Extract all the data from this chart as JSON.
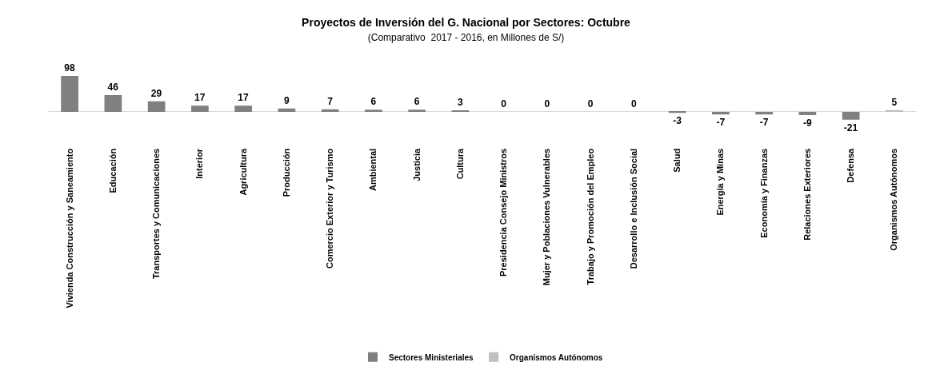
{
  "chart_data": {
    "type": "bar",
    "title": "Proyectos de Inversión del G. Nacional por Sectores: Octubre",
    "subtitle": "(Comparativo  2017 - 2016, en Millones de S/)",
    "categories": [
      "Vivienda Construcción y Saneamiento",
      "Educación",
      "Transportes y Comunicaciones",
      "Interior",
      "Agricultura",
      "Producción",
      "Comercio Exterior y Turismo",
      "Ambiental",
      "Justicia",
      "Cultura",
      "Presidencia Consejo Ministros",
      "Mujer y Poblaciones Vulnerables",
      "Trabajo y Promoción del Empleo",
      "Desarrollo e Inclusión Social",
      "Salud",
      "Energía y Minas",
      "Economía y Finanzas",
      "Relaciones Exteriores",
      "Defensa",
      "Organismos Autónomos"
    ],
    "series": [
      {
        "name": "Sectores Ministeriales",
        "color": "#808080",
        "values": [
          98,
          46,
          29,
          17,
          17,
          9,
          7,
          6,
          6,
          3,
          0,
          0,
          0,
          0,
          -3,
          -7,
          -7,
          -9,
          -21,
          null
        ]
      },
      {
        "name": "Organismos Autónomos",
        "color": "#c0c0c0",
        "values": [
          null,
          null,
          null,
          null,
          null,
          null,
          null,
          null,
          null,
          null,
          null,
          null,
          null,
          null,
          null,
          null,
          null,
          null,
          null,
          5
        ]
      }
    ],
    "data_labels": true,
    "legend": "bottom",
    "grid": false
  }
}
